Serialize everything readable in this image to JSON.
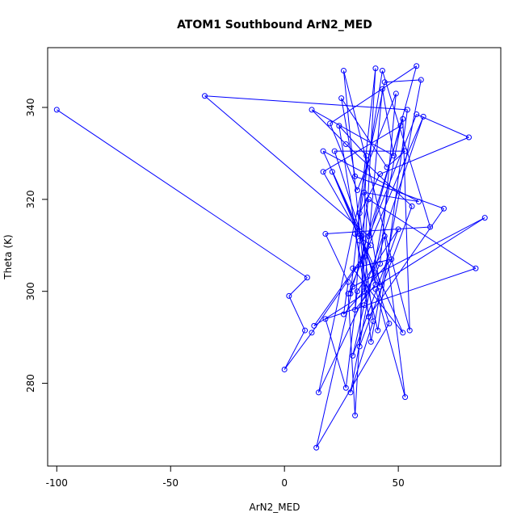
{
  "chart_data": {
    "type": "line",
    "title": "ATOM1 Southbound ArN2_MED",
    "xlabel": "ArN2_MED",
    "ylabel": "Theta (K)",
    "xlim": [
      -104,
      95
    ],
    "ylim": [
      262,
      353
    ],
    "xticks": [
      -100,
      -50,
      0,
      50
    ],
    "yticks": [
      280,
      300,
      320,
      340
    ],
    "series_color": "#0000ff",
    "marker": "open-circle",
    "grid": false,
    "legend": "none",
    "series": [
      {
        "x": [
          -100,
          10,
          2,
          9,
          0,
          12,
          35,
          58,
          20,
          32,
          49,
          42,
          15,
          44,
          60,
          38,
          26,
          55,
          52,
          29,
          40,
          31,
          28,
          61,
          35,
          43,
          48,
          12,
          27,
          56,
          33,
          36,
          24,
          37,
          70,
          31,
          25,
          45,
          53,
          22,
          46,
          14,
          30,
          88,
          13,
          38,
          31,
          41,
          54,
          -35,
          37,
          58,
          81,
          42,
          33,
          39,
          29,
          51,
          17,
          32,
          43,
          64,
          18,
          28,
          26,
          47,
          30,
          52,
          21,
          42,
          35,
          59,
          17,
          34,
          40,
          31,
          33,
          37,
          84,
          18,
          27,
          32,
          50,
          30,
          35,
          44,
          53,
          40
        ],
        "y": [
          339.5,
          303.0,
          299.0,
          291.5,
          283.0,
          291.0,
          307.5,
          349.0,
          336.5,
          322.0,
          343.0,
          306.0,
          278.0,
          345.5,
          346.0,
          289.0,
          348.0,
          291.5,
          337.5,
          299.5,
          348.5,
          273.0,
          299.5,
          338.0,
          300.0,
          344.0,
          329.5,
          339.5,
          332.0,
          318.5,
          288.0,
          329.5,
          336.0,
          294.5,
          318.0,
          325.0,
          342.0,
          327.0,
          330.5,
          330.5,
          293.0,
          266.0,
          301.0,
          316.0,
          292.5,
          310.0,
          312.5,
          291.5,
          339.5,
          342.5,
          312.0,
          338.5,
          333.5,
          325.5,
          317.0,
          293.5,
          278.0,
          336.0,
          326.0,
          313.0,
          348.0,
          314.0,
          312.5,
          302.0,
          295.0,
          307.0,
          305.0,
          291.0,
          326.0,
          301.0,
          321.5,
          319.5,
          330.5,
          312.0,
          301.5,
          296.0,
          311.0,
          320.0,
          305.0,
          294.0,
          279.0,
          300.0,
          313.5,
          286.0,
          297.0,
          312.0,
          277.0,
          300.5
        ]
      }
    ]
  }
}
